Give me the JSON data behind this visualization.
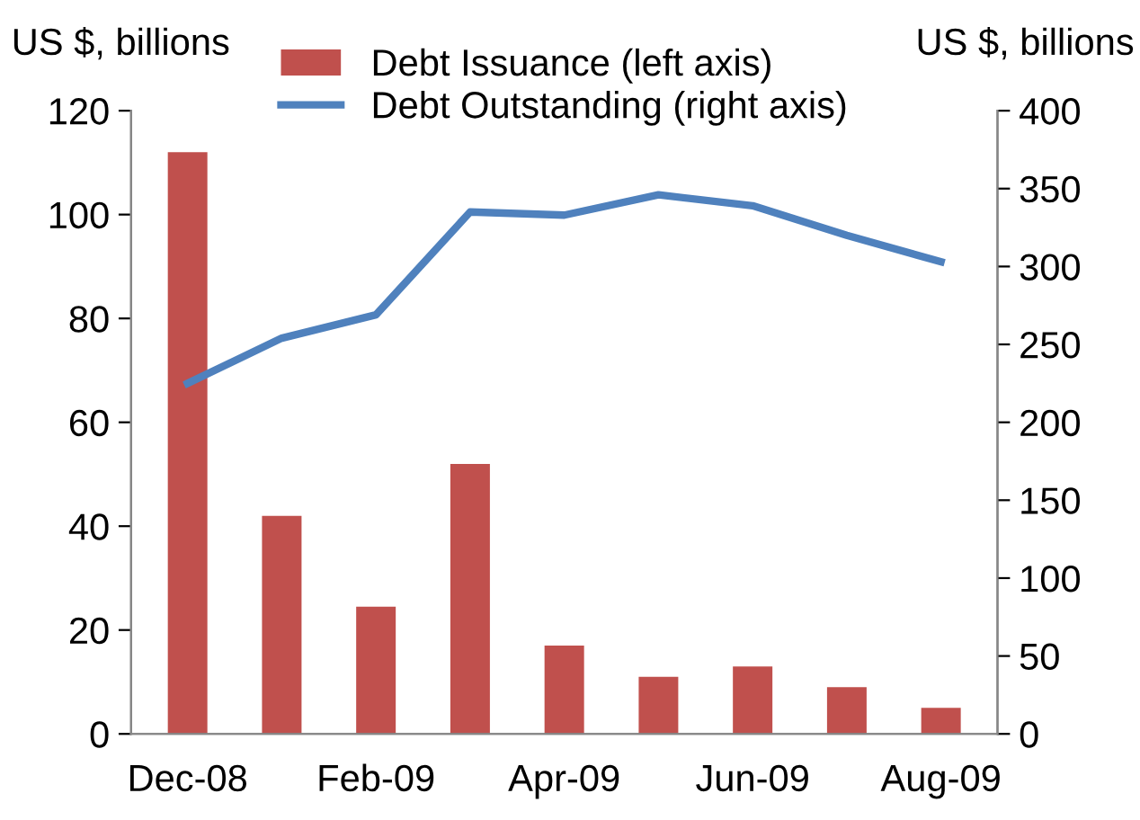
{
  "chart_data": {
    "type": "bar",
    "ylabel": "US $, billions",
    "y2label": "US $, billions",
    "categories": [
      "Dec-08",
      null,
      "Feb-09",
      null,
      "Apr-09",
      null,
      "Jun-09",
      null,
      "Aug-09"
    ],
    "series": [
      {
        "name": "Debt Issuance (left axis)",
        "color": "#c0504d",
        "values": [
          112,
          42,
          24.5,
          52,
          17,
          11,
          13,
          9,
          5
        ]
      },
      {
        "name": "Debt Outstanding (right axis)",
        "type": "line",
        "axis": "y2",
        "color": "#4f81bd",
        "values": [
          225,
          254,
          269,
          335,
          333,
          346,
          339,
          320,
          303
        ]
      }
    ],
    "ylim": [
      0,
      120
    ],
    "yticks": [
      0,
      20,
      40,
      60,
      80,
      100,
      120
    ],
    "y2lim": [
      0,
      400
    ],
    "y2ticks": [
      0,
      50,
      100,
      150,
      200,
      250,
      300,
      350,
      400
    ],
    "legend": "top",
    "grid": false
  }
}
